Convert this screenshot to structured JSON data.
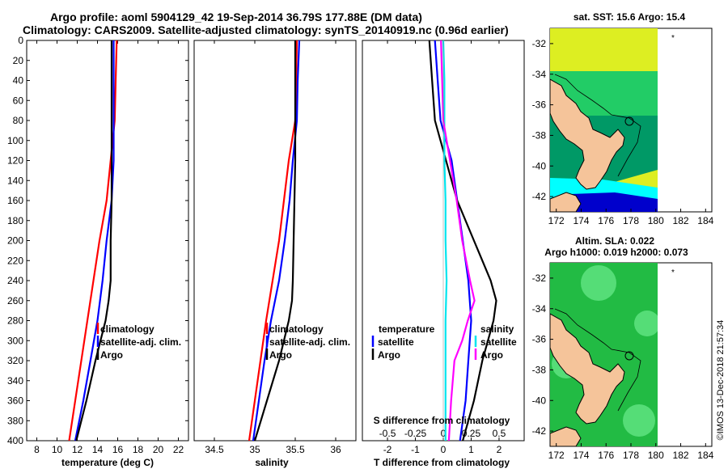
{
  "title": {
    "line1": "Argo profile: aoml 5904129_42 19-Sep-2014 36.79S 177.88E (DM data)",
    "line2": "Climatology: CARS2009. Satellite-adjusted climatology: synTS_20140919.nc (0.96d earlier)"
  },
  "credit": "©IMOS 13-Dec-2018 21:57:34",
  "colors": {
    "climatology": "#ff0000",
    "satellite": "#0000ff",
    "argo": "#000000",
    "sat_salinity": "#00e5ee",
    "argo_salinity": "#ff00ff",
    "land": "#f5c49a",
    "sst_warm": "#ddee22",
    "sst_mid": "#22cc66",
    "sst_cool": "#009966",
    "sst_cold": "#00ffff",
    "sst_dark": "#0000cc",
    "sla_base": "#22bb44",
    "sla_light": "#55dd77"
  },
  "chart_data": [
    {
      "type": "line",
      "id": "temperature",
      "xlabel": "temperature (deg C)",
      "ylabel": "depth",
      "xlim": [
        7,
        23
      ],
      "ylim": [
        0,
        400
      ],
      "y_inverted": true,
      "xticks": [
        8,
        10,
        12,
        14,
        16,
        18,
        20,
        22
      ],
      "yticks": [
        0,
        20,
        40,
        60,
        80,
        100,
        120,
        140,
        160,
        180,
        200,
        220,
        240,
        260,
        280,
        300,
        320,
        340,
        360,
        380,
        400
      ],
      "legend": [
        "climatology",
        "satellite-adj. clim.",
        "Argo"
      ],
      "series": [
        {
          "name": "climatology",
          "color": "#ff0000",
          "depth": [
            0,
            40,
            80,
            120,
            160,
            200,
            240,
            280,
            320,
            360,
            400
          ],
          "values": [
            15.9,
            15.8,
            15.7,
            15.3,
            14.9,
            14.2,
            13.6,
            13.0,
            12.4,
            11.8,
            11.2
          ]
        },
        {
          "name": "satellite-adj. clim.",
          "color": "#0000ff",
          "depth": [
            0,
            40,
            80,
            120,
            160,
            200,
            240,
            280,
            320,
            360,
            400
          ],
          "values": [
            15.6,
            15.6,
            15.6,
            15.6,
            15.4,
            14.9,
            14.5,
            14.0,
            13.3,
            12.6,
            11.8
          ]
        },
        {
          "name": "Argo",
          "color": "#000000",
          "depth": [
            0,
            40,
            80,
            120,
            160,
            200,
            240,
            260,
            280,
            320,
            360,
            400
          ],
          "values": [
            15.4,
            15.4,
            15.4,
            15.4,
            15.4,
            15.3,
            15.3,
            15.1,
            14.8,
            13.8,
            12.9,
            11.9
          ]
        }
      ]
    },
    {
      "type": "line",
      "id": "salinity",
      "xlabel": "salinity",
      "xlim": [
        34.25,
        36.25
      ],
      "ylim": [
        0,
        400
      ],
      "y_inverted": true,
      "xticks": [
        34.5,
        35,
        35.5,
        36
      ],
      "legend": [
        "climatology",
        "satellite-adj. clim.",
        "Argo"
      ],
      "series": [
        {
          "name": "climatology",
          "color": "#ff0000",
          "depth": [
            0,
            40,
            80,
            120,
            160,
            200,
            240,
            280,
            320,
            360,
            400
          ],
          "values": [
            35.52,
            35.51,
            35.5,
            35.42,
            35.36,
            35.3,
            35.22,
            35.14,
            35.07,
            35.0,
            34.93
          ]
        },
        {
          "name": "satellite-adj. clim.",
          "color": "#0000ff",
          "depth": [
            0,
            40,
            80,
            120,
            160,
            200,
            240,
            280,
            320,
            360,
            400
          ],
          "values": [
            35.55,
            35.53,
            35.52,
            35.47,
            35.43,
            35.37,
            35.3,
            35.2,
            35.12,
            35.05,
            34.98
          ]
        },
        {
          "name": "Argo",
          "color": "#000000",
          "depth": [
            0,
            40,
            80,
            120,
            160,
            200,
            240,
            260,
            280,
            320,
            360,
            400
          ],
          "values": [
            35.5,
            35.5,
            35.5,
            35.5,
            35.49,
            35.48,
            35.47,
            35.46,
            35.42,
            35.3,
            35.15,
            35.0
          ]
        }
      ]
    },
    {
      "type": "line",
      "id": "difference",
      "xlabel": "T difference from climatology",
      "xlabel_top": "S difference from climatology",
      "xlim": [
        -2.9,
        2.9
      ],
      "ylim": [
        0,
        400
      ],
      "y_inverted": true,
      "xticks": [
        -2,
        -1,
        0,
        1,
        2
      ],
      "xticks_top": [
        -0.5,
        -0.25,
        0,
        0.25,
        0.5
      ],
      "legend_temperature": [
        "temperature",
        "satellite",
        "Argo"
      ],
      "legend_salinity": [
        "salinity",
        "satellite",
        "Argo"
      ],
      "series": [
        {
          "name": "temperature satellite",
          "color": "#0000ff",
          "depth": [
            0,
            40,
            80,
            120,
            160,
            200,
            240,
            280,
            320,
            360,
            400
          ],
          "values": [
            -0.3,
            -0.2,
            -0.1,
            0.3,
            0.5,
            0.7,
            0.9,
            1.0,
            0.9,
            0.8,
            0.6
          ]
        },
        {
          "name": "temperature Argo",
          "color": "#000000",
          "depth": [
            0,
            40,
            80,
            120,
            160,
            200,
            220,
            240,
            260,
            280,
            300,
            320,
            360,
            400
          ],
          "values": [
            -0.5,
            -0.4,
            -0.3,
            0.1,
            0.5,
            1.1,
            1.4,
            1.7,
            1.9,
            1.8,
            1.6,
            1.4,
            1.1,
            0.7
          ]
        },
        {
          "name": "salinity satellite",
          "color": "#00e5ee",
          "depth": [
            0,
            40,
            80,
            120,
            160,
            200,
            240,
            280,
            320,
            360,
            400
          ],
          "values": [
            0.0,
            0.01,
            0.01,
            0.01,
            0.02,
            0.02,
            0.03,
            0.02,
            0.02,
            0.02,
            0.02
          ]
        },
        {
          "name": "salinity Argo",
          "color": "#ff00ff",
          "depth": [
            0,
            40,
            80,
            120,
            160,
            200,
            240,
            260,
            280,
            300,
            320,
            360,
            400
          ],
          "values": [
            -0.02,
            -0.01,
            0.0,
            0.06,
            0.12,
            0.17,
            0.24,
            0.28,
            0.22,
            0.17,
            0.1,
            0.07,
            0.05
          ]
        }
      ]
    },
    {
      "type": "heatmap",
      "id": "sst-map",
      "title": "sat. SST: 15.6 Argo: 15.4",
      "xlim": [
        171.5,
        184.5
      ],
      "ylim": [
        -43,
        -31
      ],
      "xticks": [
        172,
        174,
        176,
        178,
        180,
        182,
        184
      ],
      "yticks": [
        -32,
        -34,
        -36,
        -38,
        -40,
        -42
      ],
      "argo_position": [
        177.88,
        -36.79
      ]
    },
    {
      "type": "heatmap",
      "id": "sla-map",
      "title_line1": "Altim. SLA: 0.022",
      "title_line2": "Argo h1000: 0.019 h2000: 0.073",
      "xlim": [
        171.5,
        184.5
      ],
      "ylim": [
        -43,
        -31
      ],
      "xticks": [
        172,
        174,
        176,
        178,
        180,
        182,
        184
      ],
      "yticks": [
        -32,
        -34,
        -36,
        -38,
        -40,
        -42
      ],
      "argo_position": [
        177.88,
        -36.79
      ]
    }
  ]
}
